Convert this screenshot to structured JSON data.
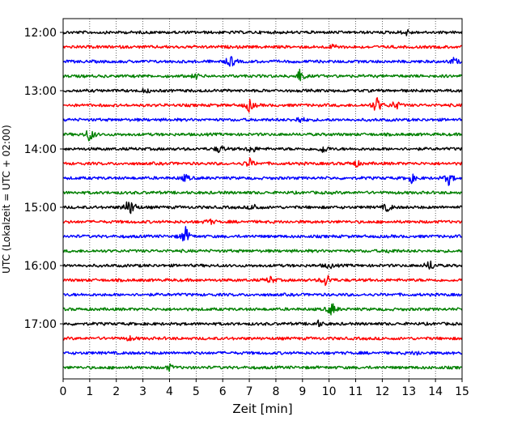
{
  "chart_data": {
    "type": "line",
    "title": "",
    "xlabel": "Zeit  [min]",
    "ylabel": "UTC (Lokalzeit = UTC + 02:00)",
    "xlim": [
      0,
      15
    ],
    "x_ticks": [
      0,
      1,
      2,
      3,
      4,
      5,
      6,
      7,
      8,
      9,
      10,
      11,
      12,
      13,
      14,
      15
    ],
    "y_tick_labels": [
      "12:00",
      "13:00",
      "14:00",
      "15:00",
      "16:00",
      "17:00"
    ],
    "grid": "vertical dotted lines at each minute",
    "trace_colors": [
      "#000000",
      "#ff0000",
      "#0000ff",
      "#008000"
    ],
    "trace_interval_minutes": 15,
    "series": [
      {
        "start": "12:00",
        "color": "#000000",
        "events": [
          {
            "x": 12.9,
            "amp": 0.4
          }
        ]
      },
      {
        "start": "12:15",
        "color": "#ff0000",
        "events": [
          {
            "x": 10.2,
            "amp": 0.4
          }
        ]
      },
      {
        "start": "12:30",
        "color": "#0000ff",
        "events": [
          {
            "x": 6.3,
            "amp": 0.9
          },
          {
            "x": 14.7,
            "amp": 0.5
          }
        ]
      },
      {
        "start": "12:45",
        "color": "#008000",
        "events": [
          {
            "x": 8.9,
            "amp": 0.9
          },
          {
            "x": 5.0,
            "amp": 0.3
          }
        ]
      },
      {
        "start": "13:00",
        "color": "#000000",
        "events": [
          {
            "x": 3.1,
            "amp": 0.3
          }
        ]
      },
      {
        "start": "13:15",
        "color": "#ff0000",
        "events": [
          {
            "x": 7.0,
            "amp": 0.9
          },
          {
            "x": 11.8,
            "amp": 1.2
          },
          {
            "x": 12.5,
            "amp": 0.7
          }
        ]
      },
      {
        "start": "13:30",
        "color": "#0000ff",
        "events": [
          {
            "x": 8.9,
            "amp": 0.5
          }
        ]
      },
      {
        "start": "13:45",
        "color": "#008000",
        "events": [
          {
            "x": 1.0,
            "amp": 1.1
          }
        ]
      },
      {
        "start": "14:00",
        "color": "#000000",
        "events": [
          {
            "x": 5.9,
            "amp": 0.6
          },
          {
            "x": 7.1,
            "amp": 0.6
          },
          {
            "x": 9.8,
            "amp": 0.6
          }
        ]
      },
      {
        "start": "14:15",
        "color": "#ff0000",
        "events": [
          {
            "x": 7.0,
            "amp": 0.7
          },
          {
            "x": 11.0,
            "amp": 0.5
          }
        ]
      },
      {
        "start": "14:30",
        "color": "#0000ff",
        "events": [
          {
            "x": 4.6,
            "amp": 0.5
          },
          {
            "x": 13.1,
            "amp": 0.6
          },
          {
            "x": 14.5,
            "amp": 0.9
          }
        ]
      },
      {
        "start": "14:45",
        "color": "#008000",
        "events": []
      },
      {
        "start": "15:00",
        "color": "#000000",
        "events": [
          {
            "x": 2.4,
            "amp": 0.7
          },
          {
            "x": 2.6,
            "amp": 0.9
          },
          {
            "x": 7.2,
            "amp": 0.5
          },
          {
            "x": 12.2,
            "amp": 0.6
          }
        ]
      },
      {
        "start": "15:15",
        "color": "#ff0000",
        "events": [
          {
            "x": 5.5,
            "amp": 0.4
          }
        ]
      },
      {
        "start": "15:30",
        "color": "#0000ff",
        "events": [
          {
            "x": 4.6,
            "amp": 1.3
          }
        ]
      },
      {
        "start": "15:45",
        "color": "#008000",
        "events": [
          {
            "x": 12.3,
            "amp": 0.3
          }
        ]
      },
      {
        "start": "16:00",
        "color": "#000000",
        "events": [
          {
            "x": 10.0,
            "amp": 0.4
          },
          {
            "x": 13.8,
            "amp": 0.8
          }
        ]
      },
      {
        "start": "16:15",
        "color": "#ff0000",
        "events": [
          {
            "x": 7.8,
            "amp": 0.5
          },
          {
            "x": 9.9,
            "amp": 1.0
          }
        ]
      },
      {
        "start": "16:30",
        "color": "#0000ff",
        "events": []
      },
      {
        "start": "16:45",
        "color": "#008000",
        "events": [
          {
            "x": 10.1,
            "amp": 1.0
          }
        ]
      },
      {
        "start": "17:00",
        "color": "#000000",
        "events": [
          {
            "x": 9.6,
            "amp": 0.4
          }
        ]
      },
      {
        "start": "17:15",
        "color": "#ff0000",
        "events": [
          {
            "x": 2.5,
            "amp": 0.3
          }
        ]
      },
      {
        "start": "17:30",
        "color": "#0000ff",
        "events": [
          {
            "x": 13.3,
            "amp": 0.3
          }
        ]
      },
      {
        "start": "17:45",
        "color": "#008000",
        "events": [
          {
            "x": 4.0,
            "amp": 0.4
          }
        ]
      }
    ]
  }
}
